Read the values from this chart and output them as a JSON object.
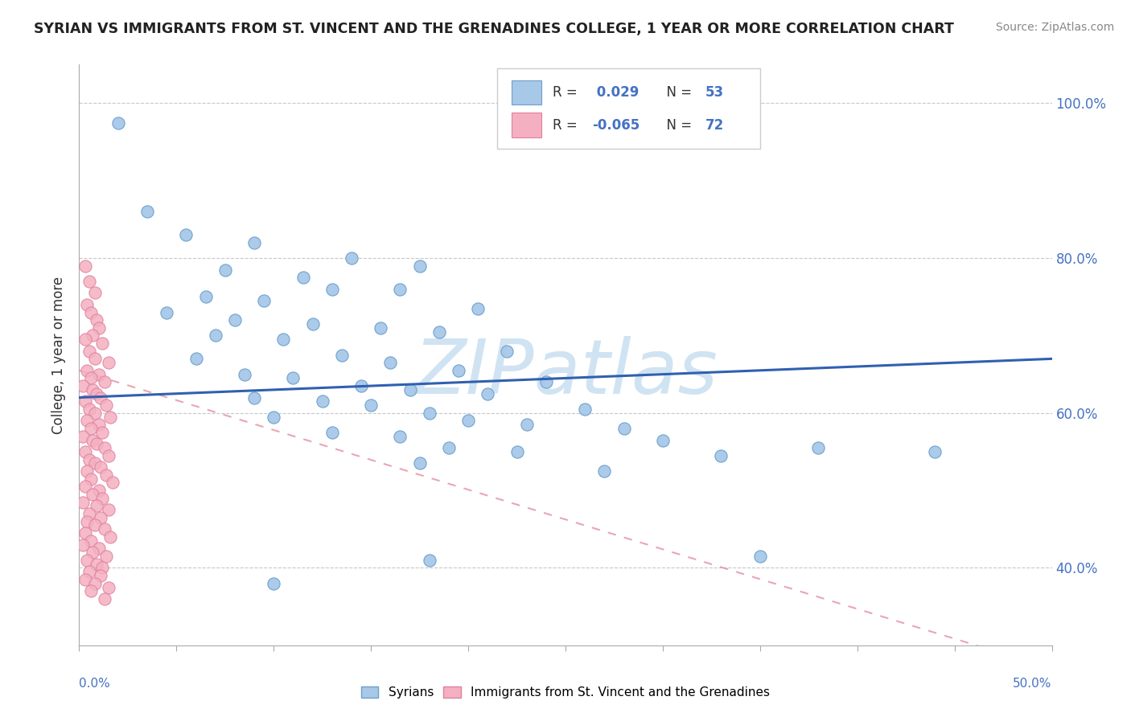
{
  "title": "SYRIAN VS IMMIGRANTS FROM ST. VINCENT AND THE GRENADINES COLLEGE, 1 YEAR OR MORE CORRELATION CHART",
  "source": "Source: ZipAtlas.com",
  "ylabel": "College, 1 year or more",
  "ytick_vals": [
    40,
    60,
    80,
    100
  ],
  "ytick_labels": [
    "40.0%",
    "60.0%",
    "80.0%",
    "100.0%"
  ],
  "xmin": 0.0,
  "xmax": 50.0,
  "ymin": 30.0,
  "ymax": 105.0,
  "blue_scatter": [
    [
      2.0,
      97.5
    ],
    [
      3.5,
      86.0
    ],
    [
      5.5,
      83.0
    ],
    [
      9.0,
      82.0
    ],
    [
      14.0,
      80.0
    ],
    [
      17.5,
      79.0
    ],
    [
      7.5,
      78.5
    ],
    [
      11.5,
      77.5
    ],
    [
      13.0,
      76.0
    ],
    [
      16.5,
      76.0
    ],
    [
      6.5,
      75.0
    ],
    [
      9.5,
      74.5
    ],
    [
      20.5,
      73.5
    ],
    [
      4.5,
      73.0
    ],
    [
      8.0,
      72.0
    ],
    [
      12.0,
      71.5
    ],
    [
      15.5,
      71.0
    ],
    [
      18.5,
      70.5
    ],
    [
      7.0,
      70.0
    ],
    [
      10.5,
      69.5
    ],
    [
      22.0,
      68.0
    ],
    [
      13.5,
      67.5
    ],
    [
      6.0,
      67.0
    ],
    [
      16.0,
      66.5
    ],
    [
      19.5,
      65.5
    ],
    [
      8.5,
      65.0
    ],
    [
      11.0,
      64.5
    ],
    [
      24.0,
      64.0
    ],
    [
      14.5,
      63.5
    ],
    [
      17.0,
      63.0
    ],
    [
      21.0,
      62.5
    ],
    [
      9.0,
      62.0
    ],
    [
      12.5,
      61.5
    ],
    [
      15.0,
      61.0
    ],
    [
      26.0,
      60.5
    ],
    [
      18.0,
      60.0
    ],
    [
      10.0,
      59.5
    ],
    [
      20.0,
      59.0
    ],
    [
      23.0,
      58.5
    ],
    [
      28.0,
      58.0
    ],
    [
      13.0,
      57.5
    ],
    [
      16.5,
      57.0
    ],
    [
      30.0,
      56.5
    ],
    [
      19.0,
      55.5
    ],
    [
      22.5,
      55.0
    ],
    [
      33.0,
      54.5
    ],
    [
      17.5,
      53.5
    ],
    [
      27.0,
      52.5
    ],
    [
      38.0,
      55.5
    ],
    [
      44.0,
      55.0
    ],
    [
      35.0,
      41.5
    ],
    [
      18.0,
      41.0
    ],
    [
      10.0,
      38.0
    ]
  ],
  "pink_scatter": [
    [
      0.3,
      79.0
    ],
    [
      0.5,
      77.0
    ],
    [
      0.8,
      75.5
    ],
    [
      0.4,
      74.0
    ],
    [
      0.6,
      73.0
    ],
    [
      0.9,
      72.0
    ],
    [
      1.0,
      71.0
    ],
    [
      0.7,
      70.0
    ],
    [
      0.3,
      69.5
    ],
    [
      1.2,
      69.0
    ],
    [
      0.5,
      68.0
    ],
    [
      0.8,
      67.0
    ],
    [
      1.5,
      66.5
    ],
    [
      0.4,
      65.5
    ],
    [
      1.0,
      65.0
    ],
    [
      0.6,
      64.5
    ],
    [
      1.3,
      64.0
    ],
    [
      0.2,
      63.5
    ],
    [
      0.7,
      63.0
    ],
    [
      0.9,
      62.5
    ],
    [
      1.1,
      62.0
    ],
    [
      0.3,
      61.5
    ],
    [
      1.4,
      61.0
    ],
    [
      0.5,
      60.5
    ],
    [
      0.8,
      60.0
    ],
    [
      1.6,
      59.5
    ],
    [
      0.4,
      59.0
    ],
    [
      1.0,
      58.5
    ],
    [
      0.6,
      58.0
    ],
    [
      1.2,
      57.5
    ],
    [
      0.2,
      57.0
    ],
    [
      0.7,
      56.5
    ],
    [
      0.9,
      56.0
    ],
    [
      1.3,
      55.5
    ],
    [
      0.3,
      55.0
    ],
    [
      1.5,
      54.5
    ],
    [
      0.5,
      54.0
    ],
    [
      0.8,
      53.5
    ],
    [
      1.1,
      53.0
    ],
    [
      0.4,
      52.5
    ],
    [
      1.4,
      52.0
    ],
    [
      0.6,
      51.5
    ],
    [
      1.7,
      51.0
    ],
    [
      0.3,
      50.5
    ],
    [
      1.0,
      50.0
    ],
    [
      0.7,
      49.5
    ],
    [
      1.2,
      49.0
    ],
    [
      0.2,
      48.5
    ],
    [
      0.9,
      48.0
    ],
    [
      1.5,
      47.5
    ],
    [
      0.5,
      47.0
    ],
    [
      1.1,
      46.5
    ],
    [
      0.4,
      46.0
    ],
    [
      0.8,
      45.5
    ],
    [
      1.3,
      45.0
    ],
    [
      0.3,
      44.5
    ],
    [
      1.6,
      44.0
    ],
    [
      0.6,
      43.5
    ],
    [
      0.2,
      43.0
    ],
    [
      1.0,
      42.5
    ],
    [
      0.7,
      42.0
    ],
    [
      1.4,
      41.5
    ],
    [
      0.4,
      41.0
    ],
    [
      0.9,
      40.5
    ],
    [
      1.2,
      40.0
    ],
    [
      0.5,
      39.5
    ],
    [
      1.1,
      39.0
    ],
    [
      0.3,
      38.5
    ],
    [
      0.8,
      38.0
    ],
    [
      1.5,
      37.5
    ],
    [
      0.6,
      37.0
    ],
    [
      1.3,
      36.0
    ]
  ],
  "blue_line": [
    0.0,
    50.0,
    62.0,
    67.0
  ],
  "pink_line": [
    0.0,
    50.0,
    65.5,
    27.0
  ],
  "blue_scatter_color": "#a8c8e8",
  "blue_scatter_edge": "#6aa0cc",
  "pink_scatter_color": "#f4b0c0",
  "pink_scatter_edge": "#e080a0",
  "blue_line_color": "#3060b0",
  "pink_line_color": "#e08090",
  "watermark_text": "ZIPatlas",
  "watermark_color": "#c8dff0",
  "legend_r1": "R =  0.029",
  "legend_n1": "N = 53",
  "legend_r2": "R = -0.065",
  "legend_n2": "N = 72",
  "title_color": "#222222",
  "source_color": "#888888",
  "axis_label_color": "#333333",
  "tick_color": "#4472c4",
  "grid_color": "#c8c8c8",
  "background_color": "#ffffff"
}
